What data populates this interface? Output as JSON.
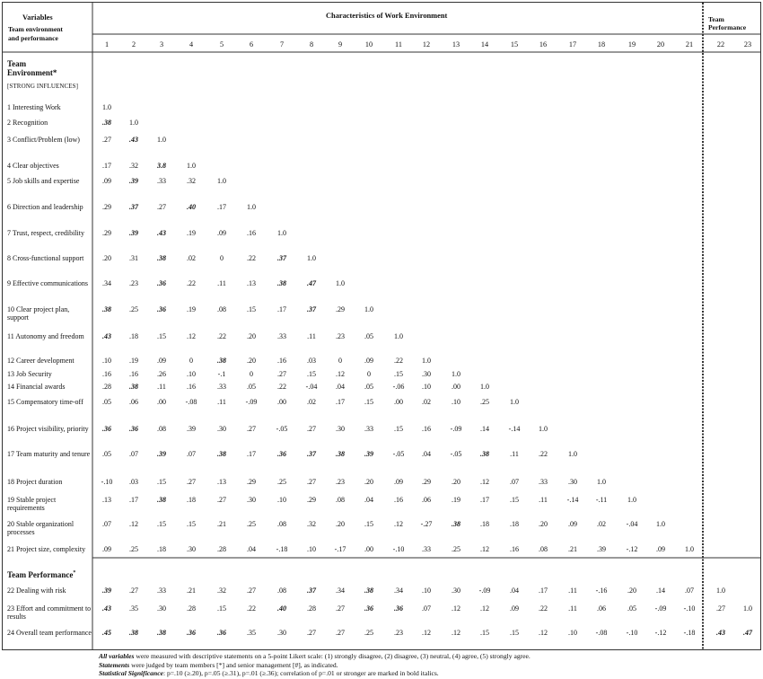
{
  "header": {
    "variables_title": "Variables",
    "variables_sub": [
      "Team environment",
      "and performance"
    ],
    "characteristics_title": "Characteristics of Work Environment",
    "team_perf_title": [
      "Team",
      "Performance"
    ]
  },
  "columns": [
    "1",
    "2",
    "3",
    "4",
    "5",
    "6",
    "7",
    "8",
    "9",
    "10",
    "11",
    "12",
    "13",
    "14",
    "15",
    "16",
    "17",
    "18",
    "19",
    "20",
    "21",
    "22",
    "23"
  ],
  "sections": {
    "team_env": [
      "Team",
      "Environment*"
    ],
    "strong": "[STRONG INFLUENCES]",
    "team_perf": "Team Performance"
  },
  "rows": [
    {
      "label": "1  Interesting Work",
      "cells": [
        "1.0"
      ],
      "sig": []
    },
    {
      "label": "2  Recognition",
      "cells": [
        ".38",
        "1.0"
      ],
      "sig": [
        0
      ]
    },
    {
      "label": "3  Conflict/Problem (low)",
      "cells": [
        ".27",
        ".43",
        "1.0"
      ],
      "sig": [
        1
      ]
    },
    {
      "label": "4  Clear objectives",
      "cells": [
        ".17",
        ".32",
        "3.8",
        "1.0"
      ],
      "sig": [
        2
      ]
    },
    {
      "label": "5  Job skills and expertise",
      "cells": [
        ".09",
        ".39",
        ".33",
        ".32",
        "1.0"
      ],
      "sig": [
        1
      ]
    },
    {
      "label": "6  Direction and leadership",
      "cells": [
        ".29",
        ".37",
        ".27",
        ".40",
        ".17",
        "1.0"
      ],
      "sig": [
        1,
        3
      ]
    },
    {
      "label": "7  Trust, respect, credibility",
      "cells": [
        ".29",
        ".39",
        ".43",
        ".19",
        ".09",
        ".16",
        "1.0"
      ],
      "sig": [
        1,
        2
      ]
    },
    {
      "label": "8  Cross-functional support",
      "cells": [
        ".20",
        ".31",
        ".38",
        ".02",
        "0",
        ".22",
        ".37",
        "1.0"
      ],
      "sig": [
        2,
        6
      ]
    },
    {
      "label": "9  Effective communications",
      "cells": [
        ".34",
        ".23",
        ".36",
        ".22",
        ".11",
        ".13",
        ".38",
        ".47",
        "1.0"
      ],
      "sig": [
        2,
        6,
        7
      ]
    },
    {
      "label": "10  Clear project plan, support",
      "cells": [
        ".38",
        ".25",
        ".36",
        ".19",
        ".08",
        ".15",
        ".17",
        ".37",
        ".29",
        "1.0"
      ],
      "sig": [
        0,
        2,
        7
      ]
    },
    {
      "label": "11  Autonomy and freedom",
      "cells": [
        ".43",
        ".18",
        ".15",
        ".12",
        ".22",
        ".20",
        ".33",
        ".11",
        ".23",
        ".05",
        "1.0"
      ],
      "sig": [
        0
      ]
    },
    {
      "label": "12  Career development",
      "cells": [
        ".10",
        ".19",
        ".09",
        "0",
        ".38",
        ".20",
        ".16",
        ".03",
        "0",
        ".09",
        ".22",
        "1.0"
      ],
      "sig": [
        4
      ]
    },
    {
      "label": "13  Job Security",
      "cells": [
        ".16",
        ".16",
        ".26",
        ".10",
        "-.1",
        "0",
        ".27",
        ".15",
        ".12",
        "0",
        ".15",
        ".30",
        "1.0"
      ],
      "sig": []
    },
    {
      "label": "14  Financial awards",
      "cells": [
        ".28",
        ".38",
        ".11",
        ".16",
        ".33",
        ".05",
        ".22",
        "-.04",
        ".04",
        ".05",
        "-.06",
        ".10",
        ".00",
        "1.0"
      ],
      "sig": [
        1
      ]
    },
    {
      "label": "15  Compensatory time-off",
      "cells": [
        ".05",
        ".06",
        ".00",
        "-.08",
        ".11",
        "-.09",
        ".00",
        ".02",
        ".17",
        ".15",
        ".00",
        ".02",
        ".10",
        ".25",
        "1.0"
      ],
      "sig": []
    },
    {
      "label": "16  Project visibility, priority",
      "cells": [
        ".36",
        ".36",
        ".08",
        ".39",
        ".30",
        ".27",
        "-.05",
        ".27",
        ".30",
        ".33",
        ".15",
        ".16",
        "-.09",
        ".14",
        "-.14",
        "1.0"
      ],
      "sig": [
        0,
        1
      ]
    },
    {
      "label": "17  Team maturity and tenure",
      "cells": [
        ".05",
        ".07",
        ".39",
        ".07",
        ".38",
        ".17",
        ".36",
        ".37",
        ".38",
        ".39",
        "-.05",
        ".04",
        "-.05",
        ".38",
        ".11",
        ".22",
        "1.0"
      ],
      "sig": [
        2,
        4,
        6,
        7,
        8,
        9,
        13
      ]
    },
    {
      "label": "18  Project duration",
      "cells": [
        "-.10",
        ".03",
        ".15",
        ".27",
        ".13",
        ".29",
        ".25",
        ".27",
        ".23",
        ".20",
        ".09",
        ".29",
        ".20",
        ".12",
        ".07",
        ".33",
        ".30",
        "1.0"
      ],
      "sig": []
    },
    {
      "label": "19  Stable project requirements",
      "cells": [
        ".13",
        ".17",
        ".38",
        ".18",
        ".27",
        ".30",
        ".10",
        ".29",
        ".08",
        ".04",
        ".16",
        ".06",
        ".19",
        ".17",
        ".15",
        ".11",
        "-.14",
        "-.11",
        "1.0"
      ],
      "sig": [
        2
      ]
    },
    {
      "label": "20  Stable organizationl processes",
      "cells": [
        ".07",
        ".12",
        ".15",
        ".15",
        ".21",
        ".25",
        ".08",
        ".32",
        ".20",
        ".15",
        ".12",
        "-.27",
        ".38",
        ".18",
        ".18",
        ".20",
        ".09",
        ".02",
        "-.04",
        "1.0"
      ],
      "sig": [
        12
      ]
    },
    {
      "label": "21  Project size, complexity",
      "cells": [
        ".09",
        ".25",
        ".18",
        ".30",
        ".28",
        ".04",
        "-.18",
        ".10",
        "-.17",
        ".00",
        "-.10",
        ".33",
        ".25",
        ".12",
        ".16",
        ".08",
        ".21",
        ".39",
        "-.12",
        ".09",
        "1.0"
      ],
      "sig": []
    },
    {
      "label": "22  Dealing with risk",
      "cells": [
        ".39",
        ".27",
        ".33",
        ".21",
        ".32",
        ".27",
        ".08",
        ".37",
        ".34",
        ".38",
        ".34",
        ".10",
        ".30",
        "-.09",
        ".04",
        ".17",
        ".11",
        "-.16",
        ".20",
        ".14",
        ".07",
        "1.0"
      ],
      "sig": [
        0,
        7,
        9
      ]
    },
    {
      "label": "23  Effort and commitment to results",
      "cells": [
        ".43",
        ".35",
        ".30",
        ".28",
        ".15",
        ".22",
        ".40",
        ".28",
        ".27",
        ".36",
        ".36",
        ".07",
        ".12",
        ".12",
        ".09",
        ".22",
        ".11",
        ".06",
        ".05",
        "-.09",
        "-.10",
        ".27",
        "1.0"
      ],
      "sig": [
        0,
        6,
        9,
        10
      ]
    },
    {
      "label": "24  Overall team performance",
      "cells": [
        ".45",
        ".38",
        ".38",
        ".36",
        ".36",
        ".35",
        ".30",
        ".27",
        ".27",
        ".25",
        ".23",
        ".12",
        ".12",
        ".15",
        ".15",
        ".12",
        ".10",
        "-.08",
        "-.10",
        "-.12",
        "-.18",
        ".43",
        ".47"
      ],
      "sig": [
        0,
        1,
        2,
        3,
        4,
        21,
        22
      ]
    }
  ],
  "notes": {
    "line1_b": "All variables",
    "line1": " were measured with descriptive statements on a 5-point Likert scale: (1) strongly disagree, (2) disagree, (3) neutral, (4) agree, (5) strongly agree.",
    "line2_b": "Statements",
    "line2": " were judged by team members [*] and senior management [#], as indicated.",
    "line3_b": "Statistical Significance",
    "line3": ": p=.10 (≥.20), p=.05 (≥.31), p=.01 (≥.36); correlation of p=.01 or stronger are marked in bold italics."
  }
}
